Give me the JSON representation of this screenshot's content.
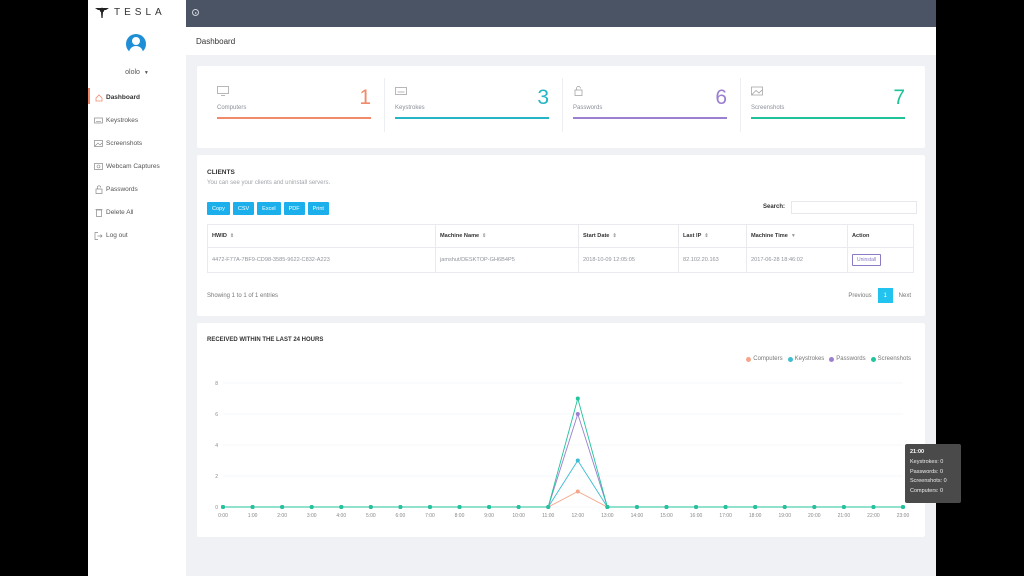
{
  "brand": {
    "name": "TESLA"
  },
  "user": {
    "name": "ololo"
  },
  "sidebar": {
    "items": [
      {
        "label": "Dashboard",
        "icon": "home-icon"
      },
      {
        "label": "Keystrokes",
        "icon": "keyboard-icon"
      },
      {
        "label": "Screenshots",
        "icon": "image-icon"
      },
      {
        "label": "Webcam Captures",
        "icon": "webcam-icon"
      },
      {
        "label": "Passwords",
        "icon": "lock-icon"
      },
      {
        "label": "Delete All",
        "icon": "trash-icon"
      },
      {
        "label": "Log out",
        "icon": "logout-icon"
      }
    ]
  },
  "page": {
    "title": "Dashboard"
  },
  "stats": [
    {
      "label": "Computers",
      "value": "1",
      "color": "#f08a6b"
    },
    {
      "label": "Keystrokes",
      "value": "3",
      "color": "#26b5c5"
    },
    {
      "label": "Passwords",
      "value": "6",
      "color": "#9b7fd1"
    },
    {
      "label": "Screenshots",
      "value": "7",
      "color": "#20c29a"
    }
  ],
  "clients": {
    "title": "CLIENTS",
    "subtitle": "You can see your clients and uninstall servers.",
    "buttons": [
      "Copy",
      "CSV",
      "Excel",
      "PDF",
      "Print"
    ],
    "search_label": "Search:",
    "columns": [
      "HWID",
      "Machine Name",
      "Start Date",
      "Last IP",
      "Machine Time",
      "Action"
    ],
    "rows": [
      {
        "hwid": "4472-F77A-7BF9-CD98-3585-9622-C832-A223",
        "machine": "jamshut/DESKTOP-GH6B4P5",
        "start": "2018-10-09 12:05:05",
        "ip": "82.102.20.163",
        "time": "2017-06-28 18:46:02",
        "action": "Uninstall"
      }
    ],
    "showing": "Showing 1 to 1 of 1 entries",
    "pager": {
      "prev": "Previous",
      "current": "1",
      "next": "Next"
    }
  },
  "chart_card": {
    "title": "RECEIVED WITHIN THE LAST 24 HOURS",
    "tooltip": {
      "title": "21:00",
      "lines": [
        "Keystrokes: 0",
        "Passwords: 0",
        "Screenshots: 0",
        "Computers: 0"
      ]
    }
  },
  "chart_data": {
    "type": "line",
    "x": [
      "0:00",
      "1:00",
      "2:00",
      "3:00",
      "4:00",
      "5:00",
      "6:00",
      "7:00",
      "8:00",
      "9:00",
      "10:00",
      "11:00",
      "12:00",
      "13:00",
      "14:00",
      "15:00",
      "16:00",
      "17:00",
      "18:00",
      "19:00",
      "20:00",
      "21:00",
      "22:00",
      "23:00"
    ],
    "ylim": [
      0,
      8
    ],
    "yticks": [
      0,
      2,
      4,
      6,
      8
    ],
    "grid": true,
    "legend": "top-right",
    "series": [
      {
        "name": "Computers",
        "color": "#f5a58a",
        "values": [
          0,
          0,
          0,
          0,
          0,
          0,
          0,
          0,
          0,
          0,
          0,
          0,
          1,
          0,
          0,
          0,
          0,
          0,
          0,
          0,
          0,
          0,
          0,
          0
        ]
      },
      {
        "name": "Keystrokes",
        "color": "#3fbcd0",
        "values": [
          0,
          0,
          0,
          0,
          0,
          0,
          0,
          0,
          0,
          0,
          0,
          0,
          3,
          0,
          0,
          0,
          0,
          0,
          0,
          0,
          0,
          0,
          0,
          0
        ]
      },
      {
        "name": "Passwords",
        "color": "#9b7fd1",
        "values": [
          0,
          0,
          0,
          0,
          0,
          0,
          0,
          0,
          0,
          0,
          0,
          0,
          6,
          0,
          0,
          0,
          0,
          0,
          0,
          0,
          0,
          0,
          0,
          0
        ]
      },
      {
        "name": "Screenshots",
        "color": "#21c59b",
        "values": [
          0,
          0,
          0,
          0,
          0,
          0,
          0,
          0,
          0,
          0,
          0,
          0,
          7,
          0,
          0,
          0,
          0,
          0,
          0,
          0,
          0,
          0,
          0,
          0
        ]
      }
    ]
  }
}
